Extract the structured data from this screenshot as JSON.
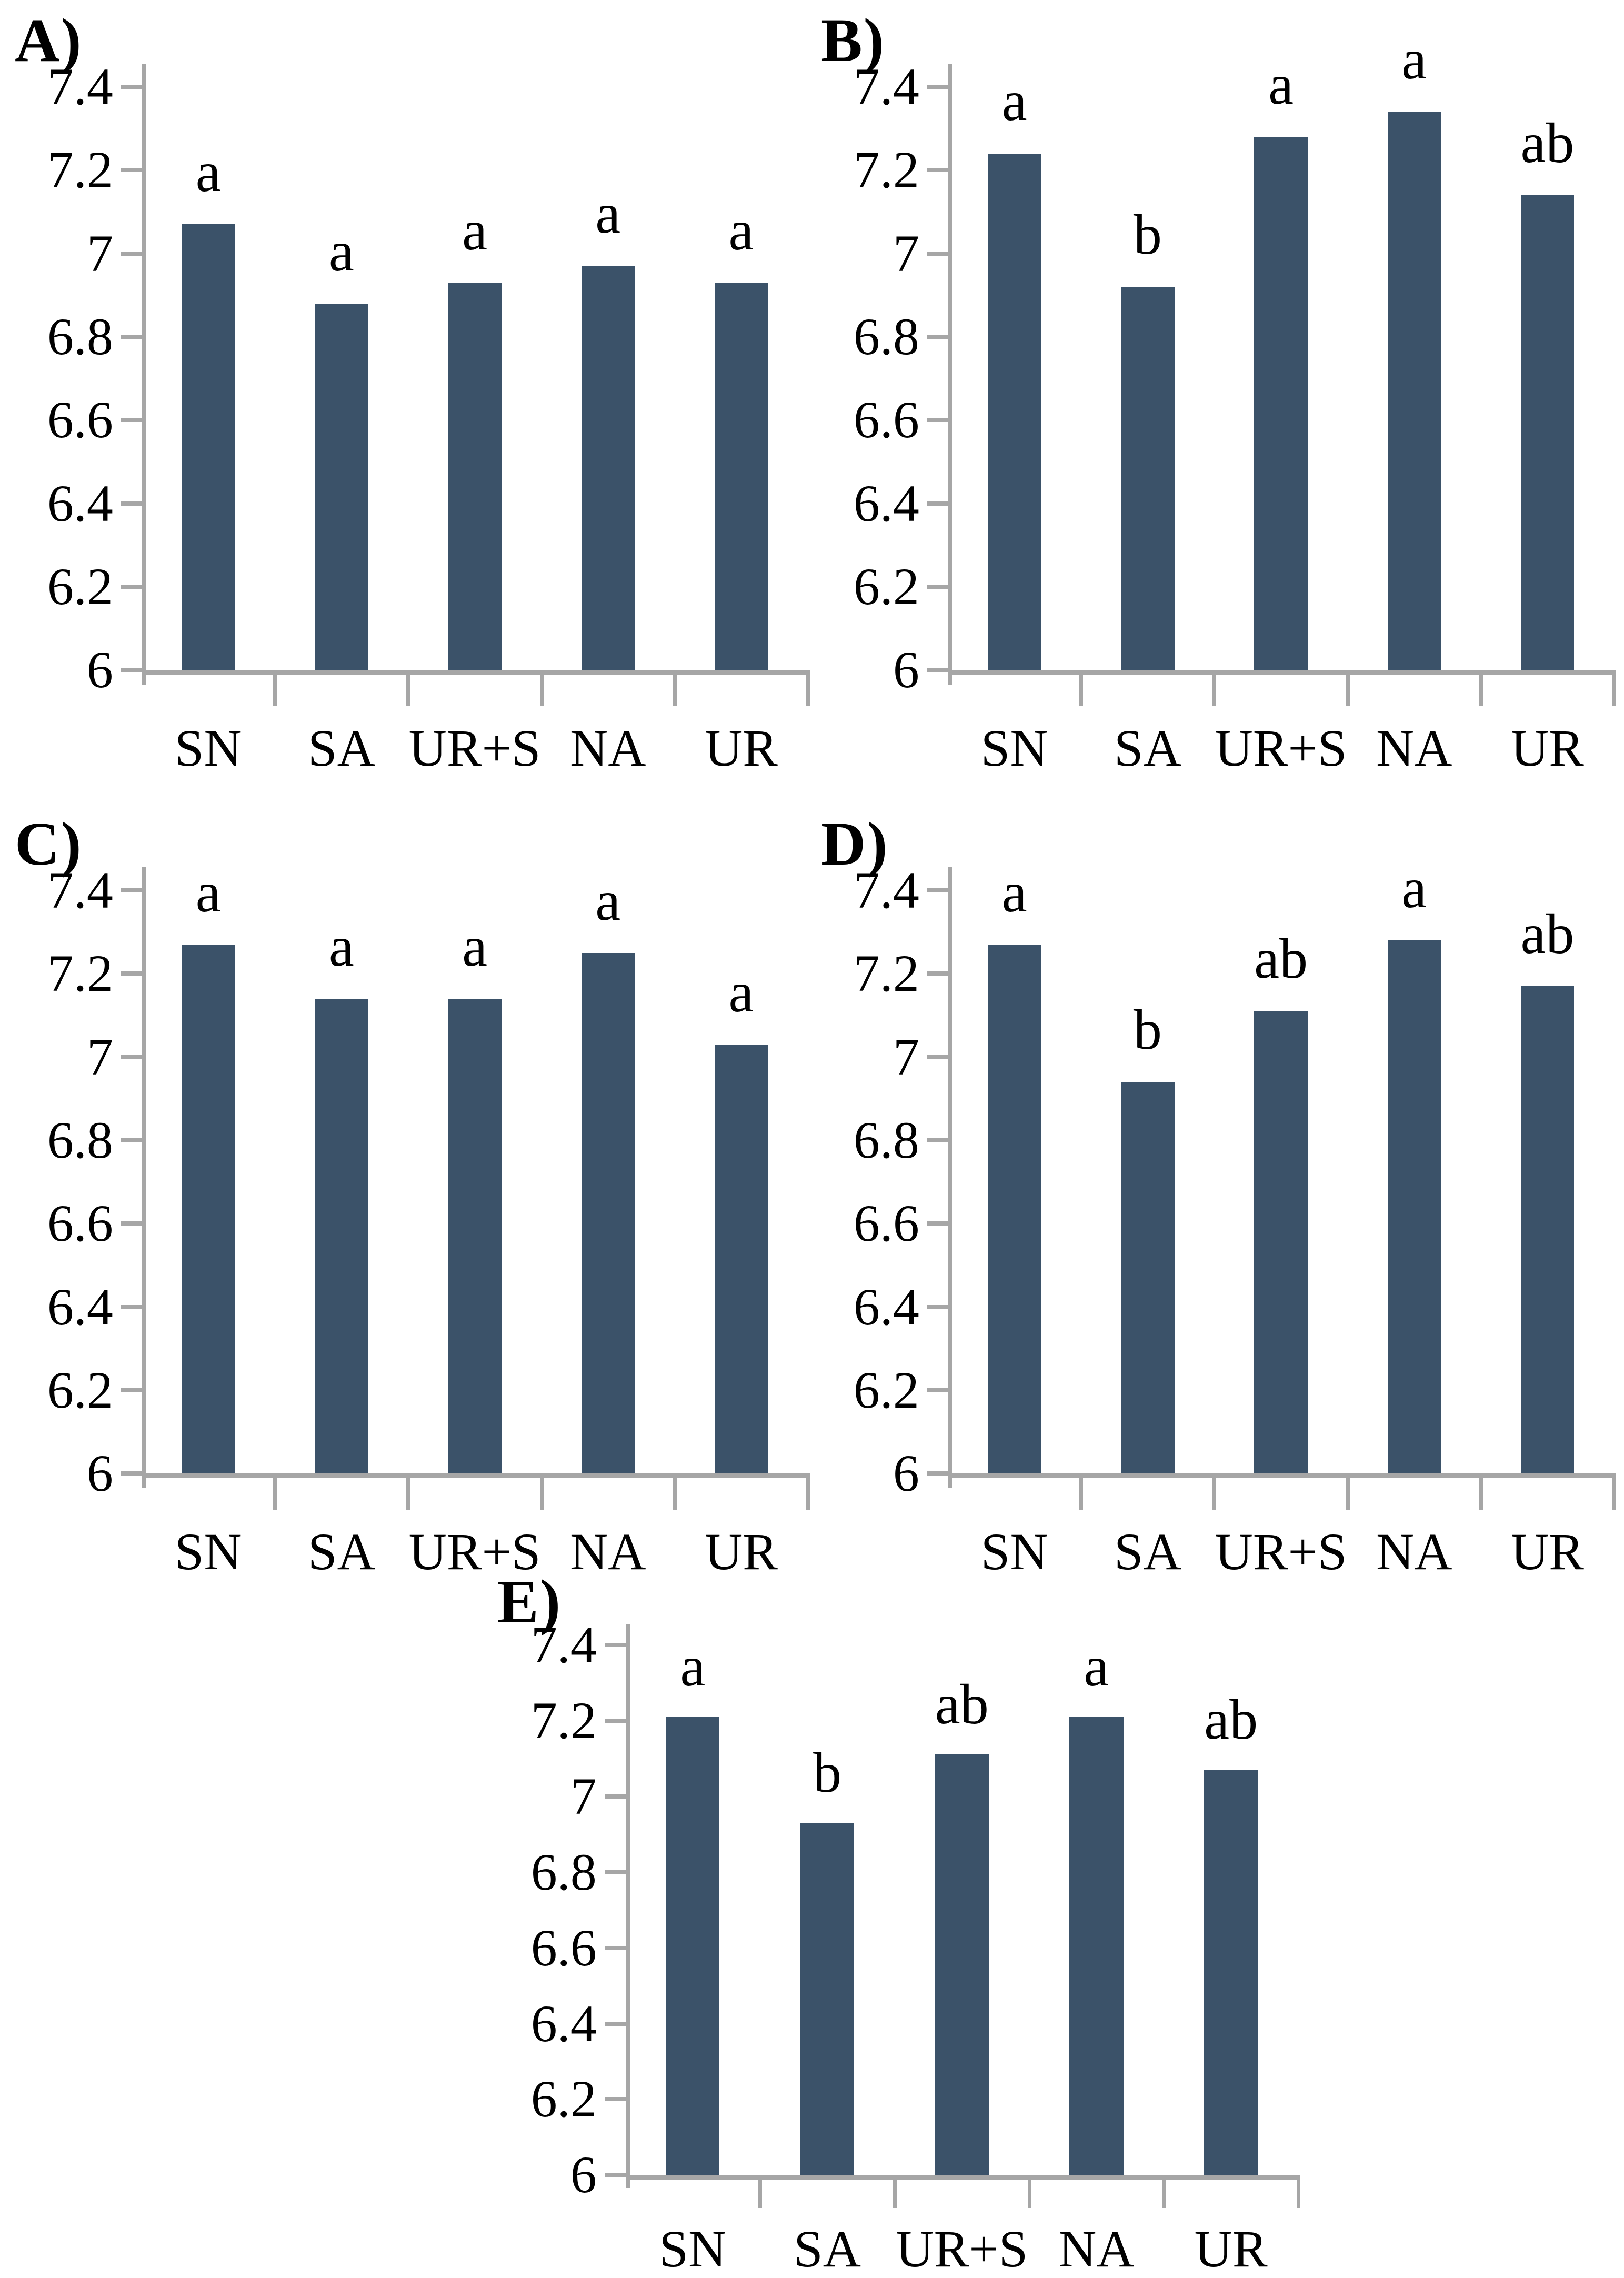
{
  "figure": {
    "title": "",
    "colors": {
      "bar": "#3B5269",
      "axis": "#A6A6A6",
      "text": "#000000"
    },
    "y_ticks": [
      "7.4",
      "7.2",
      "7",
      "6.8",
      "6.6",
      "6.4",
      "6.2",
      "6"
    ],
    "categories": [
      "SN",
      "SA",
      "UR+S",
      "NA",
      "UR"
    ]
  },
  "chart_data": [
    {
      "type": "bar",
      "label": "A)",
      "categories": [
        "SN",
        "SA",
        "UR+S",
        "NA",
        "UR"
      ],
      "values": [
        7.07,
        6.88,
        6.93,
        6.97,
        6.93
      ],
      "letters": [
        "a",
        "a",
        "a",
        "a",
        "a"
      ],
      "yticks": [
        "7.4",
        "7.2",
        "7",
        "6.8",
        "6.6",
        "6.4",
        "6.2",
        "6"
      ],
      "ylim": [
        6,
        7.4
      ],
      "xlabel": "",
      "ylabel": "",
      "grid": false,
      "legend": "none"
    },
    {
      "type": "bar",
      "label": "B)",
      "categories": [
        "SN",
        "SA",
        "UR+S",
        "NA",
        "UR"
      ],
      "values": [
        7.24,
        6.92,
        7.28,
        7.34,
        7.14
      ],
      "letters": [
        "a",
        "b",
        "a",
        "a",
        "ab"
      ],
      "yticks": [
        "7.4",
        "7.2",
        "7",
        "6.8",
        "6.6",
        "6.4",
        "6.2",
        "6"
      ],
      "ylim": [
        6,
        7.4
      ],
      "xlabel": "",
      "ylabel": "",
      "grid": false,
      "legend": "none"
    },
    {
      "type": "bar",
      "label": "C)",
      "categories": [
        "SN",
        "SA",
        "UR+S",
        "NA",
        "UR"
      ],
      "values": [
        7.27,
        7.14,
        7.14,
        7.25,
        7.03
      ],
      "letters": [
        "a",
        "a",
        "a",
        "a",
        "a"
      ],
      "yticks": [
        "7.4",
        "7.2",
        "7",
        "6.8",
        "6.6",
        "6.4",
        "6.2",
        "6"
      ],
      "ylim": [
        6,
        7.4
      ],
      "xlabel": "",
      "ylabel": "",
      "grid": false,
      "legend": "none"
    },
    {
      "type": "bar",
      "label": "D)",
      "categories": [
        "SN",
        "SA",
        "UR+S",
        "NA",
        "UR"
      ],
      "values": [
        7.27,
        6.94,
        7.11,
        7.28,
        7.17
      ],
      "letters": [
        "a",
        "b",
        "ab",
        "a",
        "ab"
      ],
      "yticks": [
        "7.4",
        "7.2",
        "7",
        "6.8",
        "6.6",
        "6.4",
        "6.2",
        "6"
      ],
      "ylim": [
        6,
        7.4
      ],
      "xlabel": "",
      "ylabel": "",
      "grid": false,
      "legend": "none"
    },
    {
      "type": "bar",
      "label": "E)",
      "categories": [
        "SN",
        "SA",
        "UR+S",
        "NA",
        "UR"
      ],
      "values": [
        7.21,
        6.93,
        7.11,
        7.21,
        7.07
      ],
      "letters": [
        "a",
        "b",
        "ab",
        "a",
        "ab"
      ],
      "yticks": [
        "7.4",
        "7.2",
        "7",
        "6.8",
        "6.6",
        "6.4",
        "6.2",
        "6"
      ],
      "ylim": [
        6,
        7.4
      ],
      "xlabel": "",
      "ylabel": "",
      "grid": false,
      "legend": "none"
    }
  ]
}
